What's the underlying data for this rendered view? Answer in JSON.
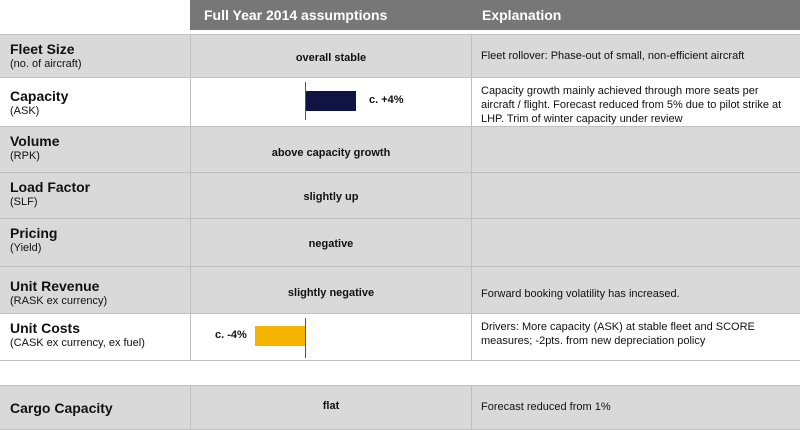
{
  "header": {
    "assumptions": "Full Year 2014 assumptions",
    "explanation": "Explanation"
  },
  "rows": [
    {
      "title": "Fleet Size",
      "sub": "(no. of aircraft)",
      "value": "overall stable",
      "explanation": "Fleet rollover: Phase-out of small, non-efficient aircraft"
    },
    {
      "title": "Capacity",
      "sub": "(ASK)",
      "bar_label": "c. +4%",
      "bar_pct": 4,
      "bar_color": "#0f1442",
      "explanation": "Capacity growth mainly achieved through more seats per aircraft / flight. Forecast reduced from 5% due to pilot strike at LHP. Trim of winter capacity under review"
    },
    {
      "title": "Volume",
      "sub": "(RPK)",
      "value": "above capacity growth",
      "explanation": ""
    },
    {
      "title": "Load Factor",
      "sub": "(SLF)",
      "value": "slightly up",
      "explanation": ""
    },
    {
      "title": "Pricing",
      "sub": "(Yield)",
      "value": "negative",
      "explanation": ""
    },
    {
      "title": "Unit Revenue",
      "sub": "(RASK ex currency)",
      "value": "slightly negative",
      "explanation": "Forward booking volatility has increased."
    },
    {
      "title": "Unit Costs",
      "sub": "(CASK ex currency, ex fuel)",
      "bar_label": "c. -4%",
      "bar_pct": -4,
      "bar_color": "#f5b400",
      "explanation": "Drivers: More capacity (ASK) at stable fleet and SCORE measures; -2pts. from new depreciation policy"
    }
  ],
  "cargo": {
    "title": "Cargo Capacity",
    "value": "flat",
    "explanation": "Forecast reduced from 1%"
  }
}
